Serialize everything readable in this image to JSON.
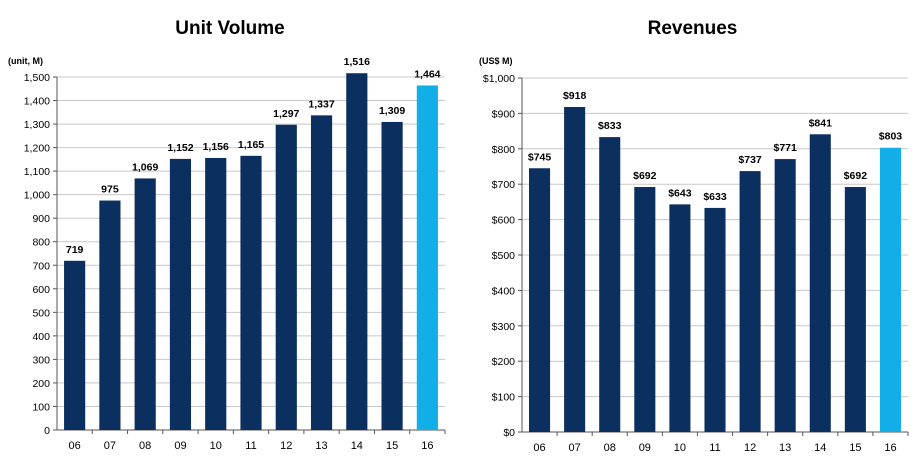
{
  "chart_data": [
    {
      "type": "bar",
      "title": "Unit Volume",
      "unit_label": "(unit, M)",
      "categories": [
        "06",
        "07",
        "08",
        "09",
        "10",
        "11",
        "12",
        "13",
        "14",
        "15",
        "16"
      ],
      "values": [
        719,
        975,
        1069,
        1152,
        1156,
        1165,
        1297,
        1337,
        1516,
        1309,
        1464
      ],
      "data_labels": [
        "719",
        "975",
        "1,069",
        "1,152",
        "1,156",
        "1,165",
        "1,297",
        "1,337",
        "1,516",
        "1,309",
        "1,464"
      ],
      "ylim": [
        0,
        1500
      ],
      "yticks": [
        0,
        100,
        200,
        300,
        400,
        500,
        600,
        700,
        800,
        900,
        1000,
        1100,
        1200,
        1300,
        1400,
        1500
      ],
      "ytick_labels": [
        "0",
        "100",
        "200",
        "300",
        "400",
        "500",
        "600",
        "700",
        "800",
        "900",
        "1,000",
        "1,100",
        "1,200",
        "1,300",
        "1,400",
        "1,500"
      ],
      "grid": true,
      "colors": {
        "bar": "#0b2f5e",
        "highlight_bar": "#12aee8"
      },
      "highlight_index": 10
    },
    {
      "type": "bar",
      "title": "Revenues",
      "unit_label": "(US$ M)",
      "categories": [
        "06",
        "07",
        "08",
        "09",
        "10",
        "11",
        "12",
        "13",
        "14",
        "15",
        "16"
      ],
      "values": [
        745,
        918,
        833,
        692,
        643,
        633,
        737,
        771,
        841,
        692,
        803
      ],
      "data_labels": [
        "$745",
        "$918",
        "$833",
        "$692",
        "$643",
        "$633",
        "$737",
        "$771",
        "$841",
        "$692",
        "$803"
      ],
      "ylim": [
        0,
        1000
      ],
      "yticks": [
        0,
        100,
        200,
        300,
        400,
        500,
        600,
        700,
        800,
        900,
        1000
      ],
      "ytick_labels": [
        "$0",
        "$100",
        "$200",
        "$300",
        "$400",
        "$500",
        "$600",
        "$700",
        "$800",
        "$900",
        "$1,000"
      ],
      "grid": true,
      "colors": {
        "bar": "#0b2f5e",
        "highlight_bar": "#12aee8"
      },
      "highlight_index": 10
    }
  ]
}
